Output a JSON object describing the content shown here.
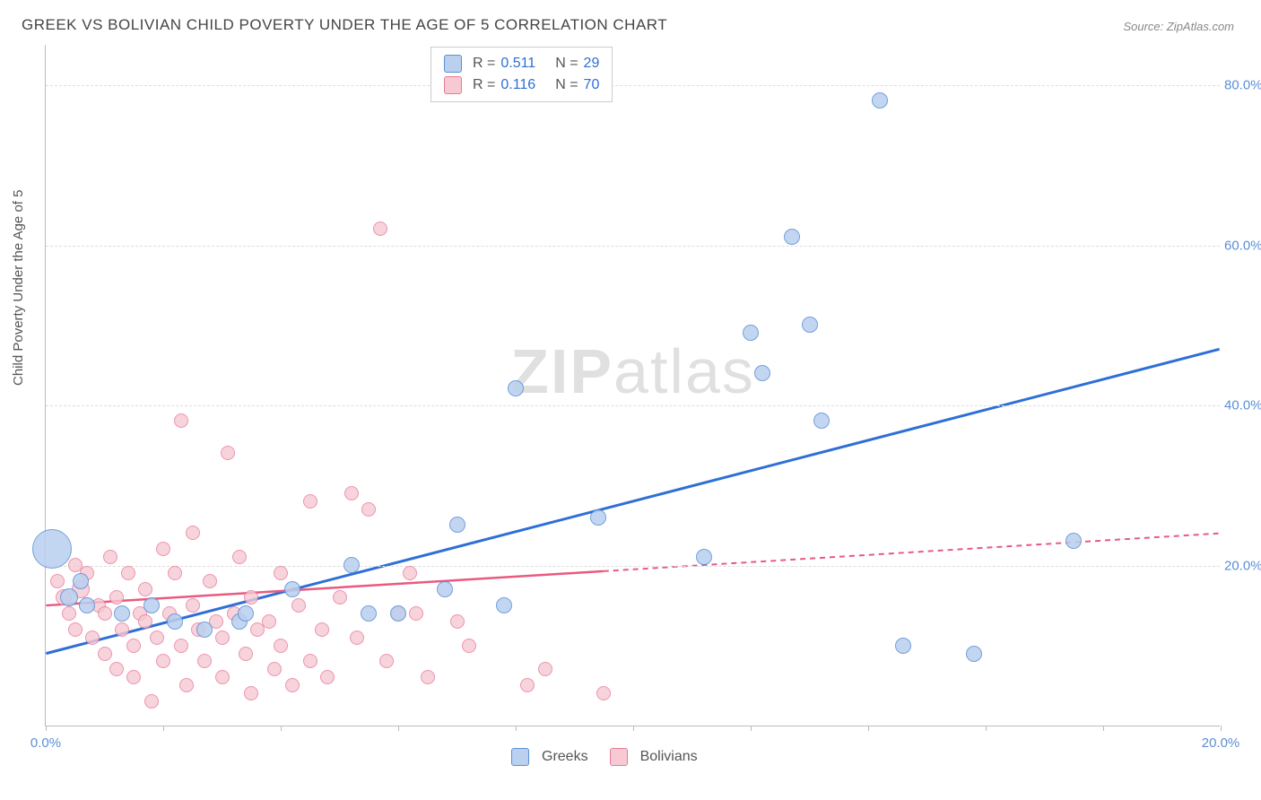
{
  "title": "GREEK VS BOLIVIAN CHILD POVERTY UNDER THE AGE OF 5 CORRELATION CHART",
  "source_label": "Source: ZipAtlas.com",
  "ylabel": "Child Poverty Under the Age of 5",
  "watermark": {
    "bold": "ZIP",
    "light": "atlas"
  },
  "chart": {
    "type": "scatter",
    "xlim": [
      0,
      20
    ],
    "ylim": [
      0,
      85
    ],
    "x_ticks": [
      0,
      2,
      4,
      6,
      8,
      10,
      12,
      14,
      16,
      18,
      20
    ],
    "x_tick_labels": {
      "0": "0.0%",
      "20": "20.0%"
    },
    "y_gridlines": [
      20,
      40,
      60,
      80
    ],
    "y_tick_labels": {
      "20": "20.0%",
      "40": "40.0%",
      "60": "60.0%",
      "80": "80.0%"
    },
    "background_color": "#ffffff",
    "grid_color": "#dddddd",
    "axis_color": "#bbbbbb",
    "tick_label_color": "#5b8fd6",
    "series": [
      {
        "name": "Greeks",
        "color_fill": "#b9d0ef",
        "color_stroke": "#5b8fd6",
        "trend_color": "#2e6fd6",
        "marker_opacity": 0.85,
        "R": "0.511",
        "N": "29",
        "trend": {
          "x1": 0,
          "y1": 9,
          "x2": 20,
          "y2": 47,
          "dash_after_x": null
        },
        "points": [
          {
            "x": 0.1,
            "y": 22,
            "r": 22
          },
          {
            "x": 0.4,
            "y": 16,
            "r": 10
          },
          {
            "x": 0.6,
            "y": 18,
            "r": 9
          },
          {
            "x": 0.7,
            "y": 15,
            "r": 9
          },
          {
            "x": 1.3,
            "y": 14,
            "r": 9
          },
          {
            "x": 1.8,
            "y": 15,
            "r": 9
          },
          {
            "x": 2.2,
            "y": 13,
            "r": 9
          },
          {
            "x": 2.7,
            "y": 12,
            "r": 9
          },
          {
            "x": 3.3,
            "y": 13,
            "r": 9
          },
          {
            "x": 3.4,
            "y": 14,
            "r": 9
          },
          {
            "x": 4.2,
            "y": 17,
            "r": 9
          },
          {
            "x": 5.2,
            "y": 20,
            "r": 9
          },
          {
            "x": 5.5,
            "y": 14,
            "r": 9
          },
          {
            "x": 6.0,
            "y": 14,
            "r": 9
          },
          {
            "x": 6.8,
            "y": 17,
            "r": 9
          },
          {
            "x": 7.0,
            "y": 25,
            "r": 9
          },
          {
            "x": 7.8,
            "y": 15,
            "r": 9
          },
          {
            "x": 8.0,
            "y": 42,
            "r": 9
          },
          {
            "x": 9.4,
            "y": 26,
            "r": 9
          },
          {
            "x": 11.2,
            "y": 21,
            "r": 9
          },
          {
            "x": 12.0,
            "y": 49,
            "r": 9
          },
          {
            "x": 12.2,
            "y": 44,
            "r": 9
          },
          {
            "x": 12.7,
            "y": 61,
            "r": 9
          },
          {
            "x": 13.0,
            "y": 50,
            "r": 9
          },
          {
            "x": 13.2,
            "y": 38,
            "r": 9
          },
          {
            "x": 14.2,
            "y": 78,
            "r": 9
          },
          {
            "x": 14.6,
            "y": 10,
            "r": 9
          },
          {
            "x": 15.8,
            "y": 9,
            "r": 9
          },
          {
            "x": 17.5,
            "y": 23,
            "r": 9
          }
        ]
      },
      {
        "name": "Bolivians",
        "color_fill": "#f6c9d3",
        "color_stroke": "#e87a9a",
        "trend_color": "#e85a80",
        "marker_opacity": 0.8,
        "R": "0.116",
        "N": "70",
        "trend": {
          "x1": 0,
          "y1": 15,
          "x2": 20,
          "y2": 24,
          "dash_after_x": 9.5
        },
        "points": [
          {
            "x": 0.2,
            "y": 18,
            "r": 8
          },
          {
            "x": 0.3,
            "y": 16,
            "r": 9
          },
          {
            "x": 0.4,
            "y": 14,
            "r": 8
          },
          {
            "x": 0.5,
            "y": 20,
            "r": 8
          },
          {
            "x": 0.5,
            "y": 12,
            "r": 8
          },
          {
            "x": 0.6,
            "y": 17,
            "r": 10
          },
          {
            "x": 0.7,
            "y": 19,
            "r": 8
          },
          {
            "x": 0.8,
            "y": 11,
            "r": 8
          },
          {
            "x": 0.9,
            "y": 15,
            "r": 8
          },
          {
            "x": 1.0,
            "y": 9,
            "r": 8
          },
          {
            "x": 1.0,
            "y": 14,
            "r": 8
          },
          {
            "x": 1.1,
            "y": 21,
            "r": 8
          },
          {
            "x": 1.2,
            "y": 7,
            "r": 8
          },
          {
            "x": 1.2,
            "y": 16,
            "r": 8
          },
          {
            "x": 1.3,
            "y": 12,
            "r": 8
          },
          {
            "x": 1.4,
            "y": 19,
            "r": 8
          },
          {
            "x": 1.5,
            "y": 10,
            "r": 8
          },
          {
            "x": 1.5,
            "y": 6,
            "r": 8
          },
          {
            "x": 1.6,
            "y": 14,
            "r": 8
          },
          {
            "x": 1.7,
            "y": 13,
            "r": 8
          },
          {
            "x": 1.7,
            "y": 17,
            "r": 8
          },
          {
            "x": 1.8,
            "y": 3,
            "r": 8
          },
          {
            "x": 1.9,
            "y": 11,
            "r": 8
          },
          {
            "x": 2.0,
            "y": 22,
            "r": 8
          },
          {
            "x": 2.0,
            "y": 8,
            "r": 8
          },
          {
            "x": 2.1,
            "y": 14,
            "r": 8
          },
          {
            "x": 2.2,
            "y": 19,
            "r": 8
          },
          {
            "x": 2.3,
            "y": 38,
            "r": 8
          },
          {
            "x": 2.3,
            "y": 10,
            "r": 8
          },
          {
            "x": 2.4,
            "y": 5,
            "r": 8
          },
          {
            "x": 2.5,
            "y": 15,
            "r": 8
          },
          {
            "x": 2.5,
            "y": 24,
            "r": 8
          },
          {
            "x": 2.6,
            "y": 12,
            "r": 8
          },
          {
            "x": 2.7,
            "y": 8,
            "r": 8
          },
          {
            "x": 2.8,
            "y": 18,
            "r": 8
          },
          {
            "x": 2.9,
            "y": 13,
            "r": 8
          },
          {
            "x": 3.0,
            "y": 11,
            "r": 8
          },
          {
            "x": 3.0,
            "y": 6,
            "r": 8
          },
          {
            "x": 3.1,
            "y": 34,
            "r": 8
          },
          {
            "x": 3.2,
            "y": 14,
            "r": 8
          },
          {
            "x": 3.3,
            "y": 21,
            "r": 8
          },
          {
            "x": 3.4,
            "y": 9,
            "r": 8
          },
          {
            "x": 3.5,
            "y": 4,
            "r": 8
          },
          {
            "x": 3.5,
            "y": 16,
            "r": 8
          },
          {
            "x": 3.6,
            "y": 12,
            "r": 8
          },
          {
            "x": 3.8,
            "y": 13,
            "r": 8
          },
          {
            "x": 3.9,
            "y": 7,
            "r": 8
          },
          {
            "x": 4.0,
            "y": 19,
            "r": 8
          },
          {
            "x": 4.0,
            "y": 10,
            "r": 8
          },
          {
            "x": 4.2,
            "y": 5,
            "r": 8
          },
          {
            "x": 4.3,
            "y": 15,
            "r": 8
          },
          {
            "x": 4.5,
            "y": 28,
            "r": 8
          },
          {
            "x": 4.5,
            "y": 8,
            "r": 8
          },
          {
            "x": 4.7,
            "y": 12,
            "r": 8
          },
          {
            "x": 4.8,
            "y": 6,
            "r": 8
          },
          {
            "x": 5.0,
            "y": 16,
            "r": 8
          },
          {
            "x": 5.2,
            "y": 29,
            "r": 8
          },
          {
            "x": 5.3,
            "y": 11,
            "r": 8
          },
          {
            "x": 5.5,
            "y": 27,
            "r": 8
          },
          {
            "x": 5.7,
            "y": 62,
            "r": 8
          },
          {
            "x": 5.8,
            "y": 8,
            "r": 8
          },
          {
            "x": 6.0,
            "y": 14,
            "r": 8
          },
          {
            "x": 6.2,
            "y": 19,
            "r": 8
          },
          {
            "x": 6.3,
            "y": 14,
            "r": 8
          },
          {
            "x": 6.5,
            "y": 6,
            "r": 8
          },
          {
            "x": 7.0,
            "y": 13,
            "r": 8
          },
          {
            "x": 7.2,
            "y": 10,
            "r": 8
          },
          {
            "x": 8.2,
            "y": 5,
            "r": 8
          },
          {
            "x": 8.5,
            "y": 7,
            "r": 8
          },
          {
            "x": 9.5,
            "y": 4,
            "r": 8
          }
        ]
      }
    ]
  },
  "legend_top": {
    "R_label": "R =",
    "N_label": "N ="
  },
  "legend_bottom": {
    "items": [
      "Greeks",
      "Bolivians"
    ]
  }
}
